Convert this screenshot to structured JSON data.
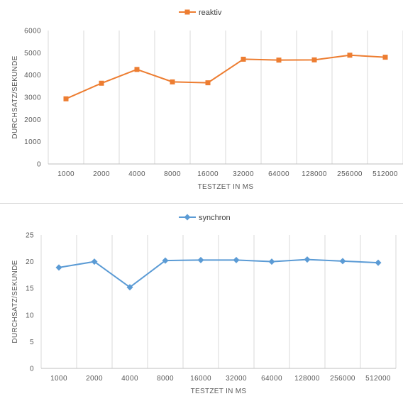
{
  "chart_data": [
    {
      "type": "line",
      "categories": [
        "1000",
        "2000",
        "4000",
        "8000",
        "16000",
        "32000",
        "64000",
        "128000",
        "256000",
        "512000"
      ],
      "series": [
        {
          "name": "reaktiv",
          "values": [
            2930,
            3630,
            4250,
            3690,
            3650,
            4710,
            4670,
            4680,
            4890,
            4800
          ]
        }
      ],
      "xlabel": "TESTZET IN MS",
      "ylabel": "DURCHSATZ/SEKUNDE",
      "ylim": [
        0,
        6000
      ],
      "yticks": [
        "0",
        "1000",
        "2000",
        "3000",
        "4000",
        "5000",
        "6000"
      ],
      "color": "#ED7D31",
      "marker": "square",
      "legend": "top-center",
      "grid": "vertical"
    },
    {
      "type": "line",
      "categories": [
        "1000",
        "2000",
        "4000",
        "8000",
        "16000",
        "32000",
        "64000",
        "128000",
        "256000",
        "512000"
      ],
      "series": [
        {
          "name": "synchron",
          "values": [
            18.9,
            20.0,
            15.2,
            20.2,
            20.3,
            20.3,
            20.0,
            20.4,
            20.1,
            19.8
          ]
        }
      ],
      "xlabel": "TESTZET IN MS",
      "ylabel": "DURCHSATZ/SEKUNDE",
      "ylim": [
        0,
        25
      ],
      "yticks": [
        "0",
        "5",
        "10",
        "15",
        "20",
        "25"
      ],
      "color": "#5B9BD5",
      "marker": "diamond",
      "legend": "top-center",
      "grid": "vertical"
    }
  ]
}
